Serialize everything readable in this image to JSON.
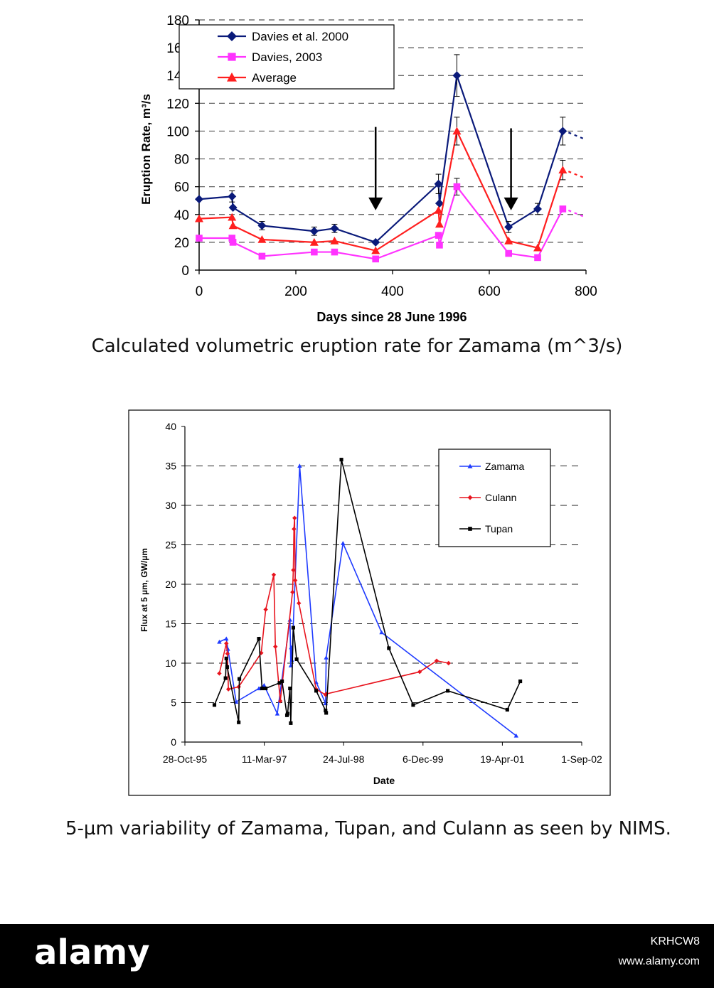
{
  "captions": {
    "chart1": "Calculated volumetric eruption rate for Zamama (m^3/s)",
    "chart2": "5-µm variability of Zamama, Tupan, and Culann as seen by NIMS."
  },
  "footer": {
    "brand": "alamy",
    "code": "KRHCW8",
    "site": "www.alamy.com"
  },
  "colors": {
    "navy": "#0a1a7a",
    "magenta": "#ff33ff",
    "red": "#ff1f1f",
    "blue": "#1f3bff",
    "crimson": "#e8141e",
    "black": "#000000"
  },
  "chart_data": [
    {
      "type": "line",
      "xlabel": "Days since 28 June 1996",
      "ylabel": "Eruption Rate, m³/s",
      "xlim": [
        0,
        800
      ],
      "ylim": [
        0,
        180
      ],
      "x_ticks": [
        "0",
        "200",
        "400",
        "600",
        "800"
      ],
      "y_ticks": [
        "0",
        "20",
        "40",
        "60",
        "80",
        "100",
        "120",
        "140",
        "160",
        "180"
      ],
      "grid": "horizontal dashed",
      "legend_position": "top-left",
      "series": [
        {
          "name": "Davies et al. 2000",
          "color": "#0a1a7a",
          "marker": "diamond",
          "x": [
            0,
            68,
            70,
            130,
            238,
            280,
            365,
            495,
            497,
            533,
            640,
            700,
            752
          ],
          "y": [
            51,
            53,
            45,
            32,
            28,
            30,
            20,
            62,
            48,
            140,
            31,
            44,
            100
          ],
          "error": [
            0,
            4,
            0,
            3,
            3,
            3,
            0,
            7,
            0,
            15,
            4,
            4,
            10
          ]
        },
        {
          "name": "Davies, 2003",
          "color": "#ff33ff",
          "marker": "square",
          "x": [
            0,
            68,
            70,
            130,
            238,
            280,
            365,
            495,
            497,
            533,
            640,
            700,
            752
          ],
          "y": [
            23,
            23,
            20,
            10,
            13,
            13,
            8,
            25,
            18,
            60,
            12,
            9,
            44
          ],
          "error": [
            0,
            0,
            0,
            0,
            0,
            0,
            0,
            0,
            0,
            6,
            0,
            0,
            0
          ]
        },
        {
          "name": "Average",
          "color": "#ff1f1f",
          "marker": "triangle",
          "x": [
            0,
            68,
            70,
            130,
            238,
            280,
            365,
            495,
            497,
            533,
            640,
            700,
            752
          ],
          "y": [
            37,
            38,
            32,
            22,
            20,
            21,
            14,
            43,
            33,
            100,
            21,
            16,
            72
          ],
          "error": [
            0,
            0,
            0,
            0,
            0,
            0,
            0,
            0,
            0,
            10,
            0,
            0,
            7
          ]
        }
      ],
      "arrows": [
        {
          "x": 365,
          "y_top": 103,
          "y_bottom": 43
        },
        {
          "x": 645,
          "y_top": 102,
          "y_bottom": 43
        }
      ]
    },
    {
      "type": "line",
      "xlabel": "Date",
      "ylabel": "Flux at 5 µm, GW/µm",
      "xlim": [
        "28-Oct-95",
        "1-Sep-02"
      ],
      "ylim": [
        0,
        40
      ],
      "x_ticks": [
        "28-Oct-95",
        "11-Mar-97",
        "24-Jul-98",
        "6-Dec-99",
        "19-Apr-01",
        "1-Sep-02"
      ],
      "y_ticks": [
        "0",
        "5",
        "10",
        "15",
        "20",
        "25",
        "30",
        "35",
        "40"
      ],
      "grid": "horizontal dashed",
      "legend_position": "top-right",
      "series": [
        {
          "name": "Zamama",
          "color": "#1f3bff",
          "marker": "triangle",
          "x": [
            "1996-06-01",
            "1996-07-15",
            "1996-07-25",
            "1996-09-15",
            "1997-02-05",
            "1997-03-10",
            "1997-06-01",
            "1997-08-20",
            "1997-08-25",
            "1997-08-28",
            "1997-09-01",
            "1997-10-20",
            "1998-02-01",
            "1998-04-01",
            "1998-04-05",
            "1998-07-20",
            "1999-03-20",
            "2001-07-15"
          ],
          "y": [
            12.7,
            13.1,
            11.8,
            5.1,
            6.8,
            7.2,
            3.6,
            15.5,
            9.7,
            12.0,
            10.4,
            35.0,
            7.6,
            4.9,
            10.7,
            25.2,
            13.9,
            0.8
          ]
        },
        {
          "name": "Culann",
          "color": "#e8141e",
          "marker": "diamond",
          "x": [
            "1996-06-01",
            "1996-07-15",
            "1996-07-22",
            "1996-07-28",
            "1996-10-01",
            "1997-02-20",
            "1997-03-20",
            "1997-05-10",
            "1997-05-20",
            "1997-06-20",
            "1997-09-05",
            "1997-09-10",
            "1997-09-14",
            "1997-09-18",
            "1997-09-22",
            "1997-10-15",
            "1998-02-01",
            "1998-04-01",
            "1998-04-05",
            "1999-11-15",
            "2000-03-01",
            "2000-05-15"
          ],
          "y": [
            8.7,
            12.5,
            11.2,
            6.7,
            7.0,
            11.3,
            16.8,
            21.2,
            12.1,
            5.2,
            19.0,
            21.8,
            27.0,
            28.4,
            20.5,
            17.6,
            6.7,
            6.0,
            6.1,
            8.9,
            10.3,
            10.0
          ],
          "arrangement": "draw order follows original figure"
        },
        {
          "name": "Tupan",
          "color": "#000000",
          "marker": "square",
          "x": [
            "1996-05-01",
            "1996-07-10",
            "1996-07-15",
            "1996-07-20",
            "1996-10-01",
            "1996-10-05",
            "1997-02-05",
            "1997-02-25",
            "1997-03-20",
            "1997-06-15",
            "1997-07-01",
            "1997-08-01",
            "1997-08-05",
            "1997-08-20",
            "1997-08-25",
            "1997-09-10",
            "1997-10-01",
            "1998-02-01",
            "1998-04-01",
            "1998-04-05",
            "1998-07-10",
            "1999-05-05",
            "1999-10-05",
            "2000-05-10",
            "2001-05-20",
            "2001-08-10"
          ],
          "y": [
            4.7,
            8.1,
            10.6,
            9.5,
            2.5,
            8.0,
            13.1,
            6.8,
            6.8,
            7.5,
            7.7,
            3.4,
            3.6,
            6.8,
            2.4,
            14.5,
            10.5,
            6.5,
            4.0,
            3.7,
            35.8,
            11.9,
            4.7,
            6.5,
            4.1,
            7.7
          ],
          "arrangement": "draw order follows original figure"
        }
      ]
    }
  ]
}
